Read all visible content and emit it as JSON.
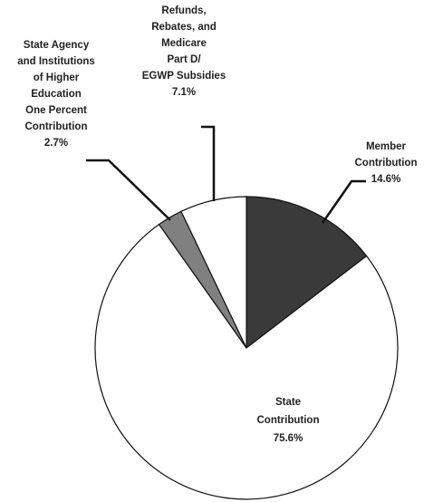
{
  "chart_data": {
    "type": "pie",
    "categories": [
      [
        "Member",
        "Contribution"
      ],
      [
        "State",
        "Contribution"
      ],
      [
        "State Agency",
        "and Institutions",
        "of Higher",
        "Education",
        "One Percent",
        "Contribution"
      ],
      [
        "Refunds,",
        "Rebates, and",
        "Medicare",
        "Part D/",
        "EGWP Subsidies"
      ]
    ],
    "values": [
      14.6,
      75.6,
      2.7,
      7.1
    ],
    "value_labels": [
      "14.6%",
      "75.6%",
      "2.7%",
      "7.1%"
    ],
    "colors": [
      "#3a3a3a",
      "#ffffff",
      "#808080",
      "#ffffff"
    ]
  }
}
